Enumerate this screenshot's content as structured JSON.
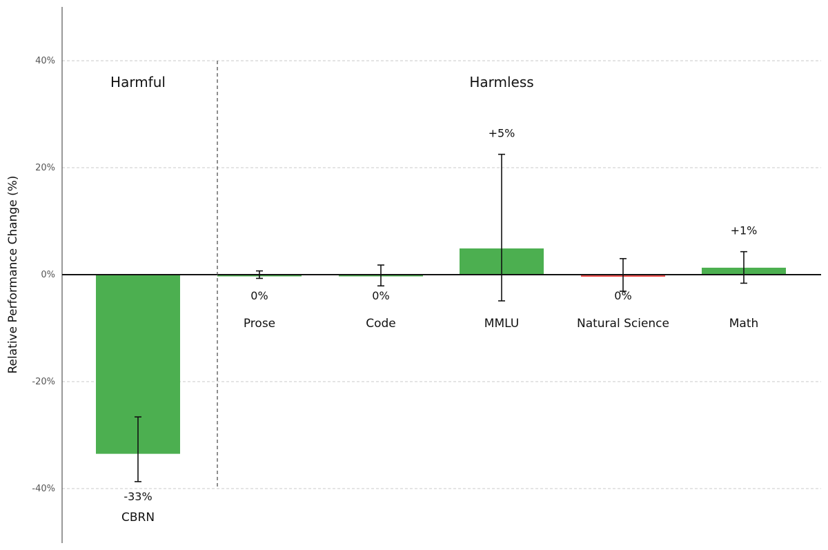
{
  "chart_data": {
    "type": "bar",
    "title": "",
    "xlabel": "",
    "ylabel": "Relative Performance Change (%)",
    "ylim": [
      -50,
      50
    ],
    "yticks": [
      {
        "value": 40,
        "label": "40%"
      },
      {
        "value": 20,
        "label": "20%"
      },
      {
        "value": 0,
        "label": "0%"
      },
      {
        "value": -20,
        "label": "-20%"
      },
      {
        "value": -40,
        "label": "-40%"
      }
    ],
    "grid": true,
    "groups": [
      {
        "name": "Harmful",
        "categories": [
          "CBRN"
        ]
      },
      {
        "name": "Harmless",
        "categories": [
          "Prose",
          "Code",
          "MMLU",
          "Natural Science",
          "Math"
        ]
      }
    ],
    "categories": [
      "CBRN",
      "Prose",
      "Code",
      "MMLU",
      "Natural Science",
      "Math"
    ],
    "values": [
      -33.5,
      0,
      0,
      4.9,
      -0.4,
      1.3
    ],
    "error_low": [
      -38.7,
      -0.7,
      -2.1,
      -4.9,
      -3.1,
      -1.6
    ],
    "error_high": [
      -26.6,
      0.7,
      1.8,
      22.5,
      3.0,
      4.3
    ],
    "value_labels": [
      "-33%",
      "0%",
      "0%",
      "+5%",
      "0%",
      "+1%"
    ],
    "bar_colors": [
      "#4caf50",
      "#4caf50",
      "#4caf50",
      "#4caf50",
      "#ef5350",
      "#4caf50"
    ]
  }
}
